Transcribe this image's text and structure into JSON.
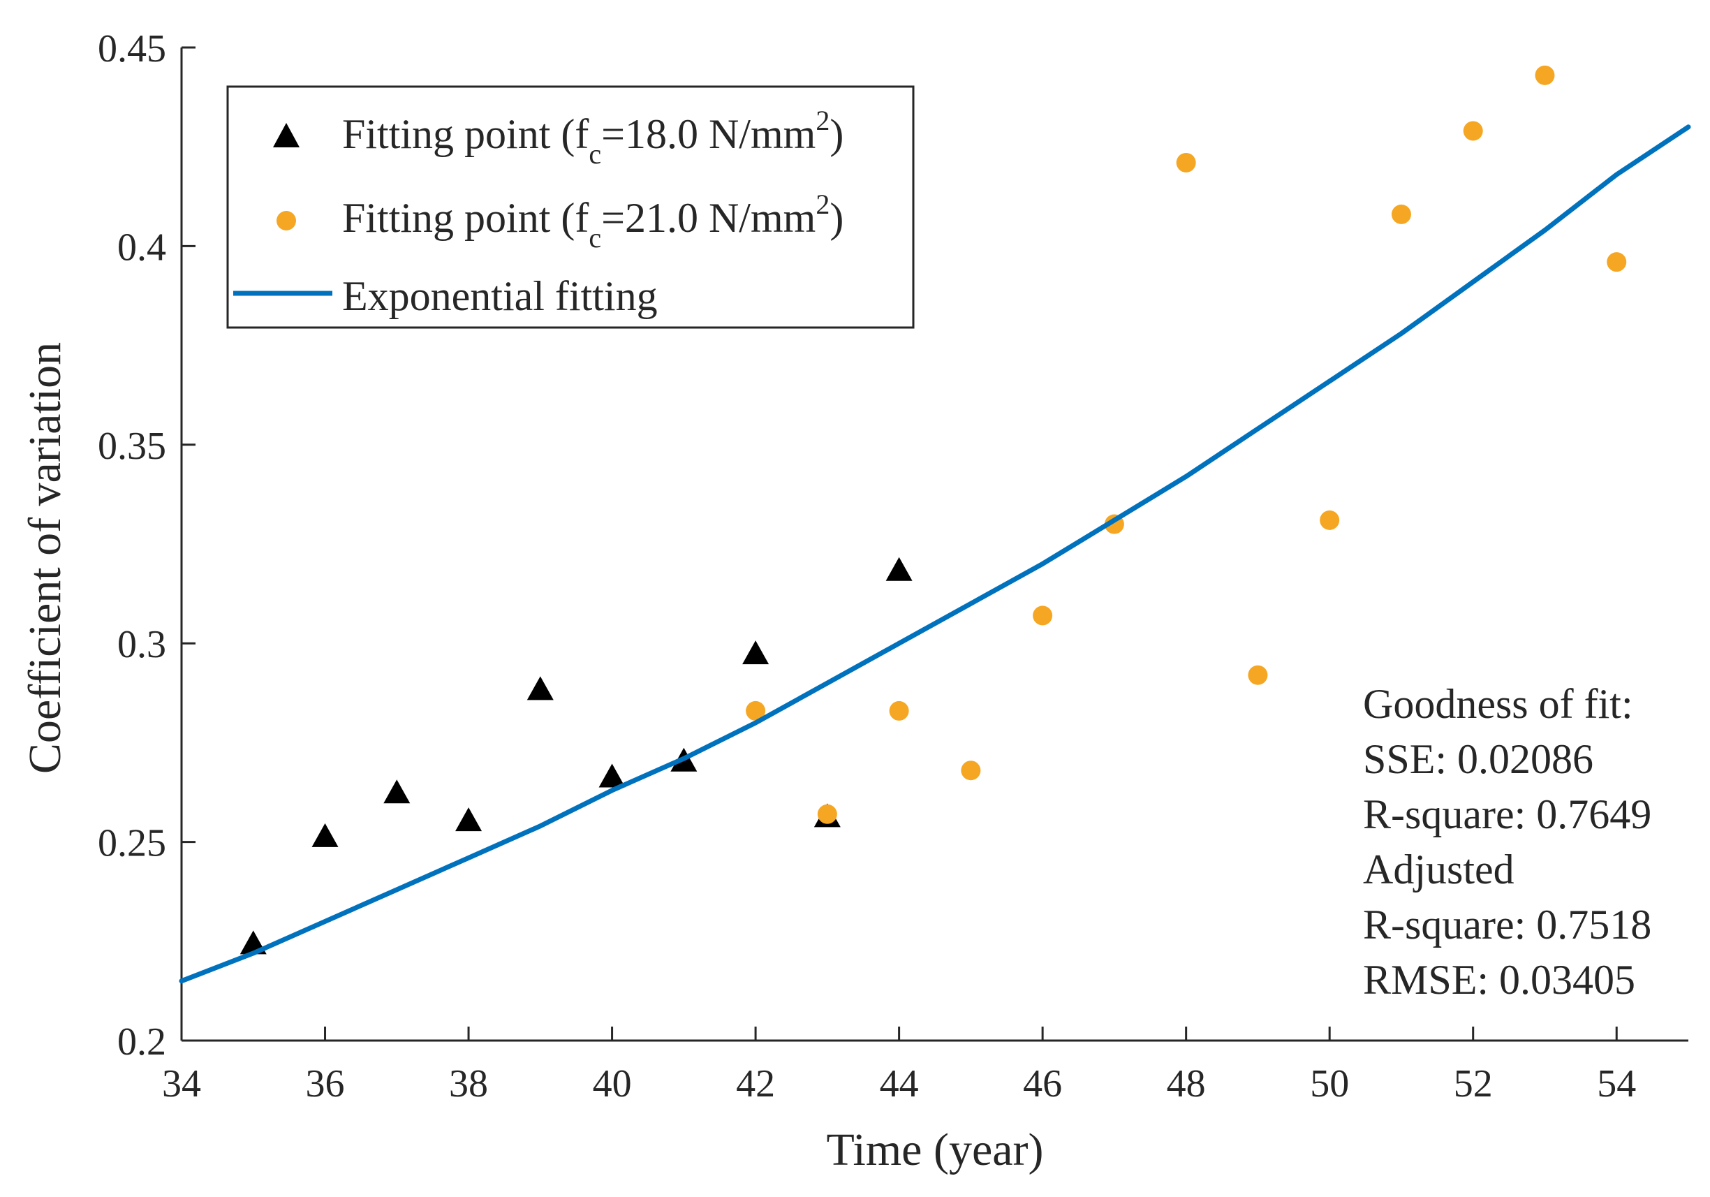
{
  "chart_data": {
    "type": "scatter",
    "xlabel": "Time (year)",
    "ylabel": "Coefficient of variation",
    "xlim": [
      34,
      55
    ],
    "ylim": [
      0.2,
      0.45
    ],
    "xticks": [
      34,
      36,
      38,
      40,
      42,
      44,
      46,
      48,
      50,
      52,
      54
    ],
    "xtick_labels": [
      "34",
      "36",
      "38",
      "40",
      "42",
      "44",
      "46",
      "48",
      "50",
      "52",
      "54"
    ],
    "yticks": [
      0.2,
      0.25,
      0.3,
      0.35,
      0.4,
      0.45
    ],
    "ytick_labels": [
      "0.2",
      "0.25",
      "0.3",
      "0.35",
      "0.4",
      "0.45"
    ],
    "grid": false,
    "legend_position": "top-left",
    "series": [
      {
        "name": "Fitting point (fc=18.0 N/mm2)",
        "legend": {
          "prefix": "Fitting point (f",
          "sub": "c",
          "mid": "=18.0 N/mm",
          "sup": "2",
          "suffix": ")"
        },
        "marker": "triangle",
        "color": "#000000",
        "x": [
          35,
          36,
          37,
          38,
          39,
          40,
          41,
          42,
          43,
          44
        ],
        "y": [
          0.224,
          0.251,
          0.262,
          0.255,
          0.288,
          0.266,
          0.27,
          0.297,
          0.256,
          0.318
        ]
      },
      {
        "name": "Fitting point (fc=21.0 N/mm2)",
        "legend": {
          "prefix": "Fitting point (f",
          "sub": "c",
          "mid": "=21.0 N/mm",
          "sup": "2",
          "suffix": ")"
        },
        "marker": "circle",
        "color": "#F5A623",
        "x": [
          42,
          43,
          44,
          45,
          46,
          47,
          48,
          49,
          50,
          51,
          52,
          53,
          54
        ],
        "y": [
          0.283,
          0.257,
          0.283,
          0.268,
          0.307,
          0.33,
          0.421,
          0.292,
          0.331,
          0.408,
          0.429,
          0.443,
          0.396
        ]
      },
      {
        "name": "Exponential fitting",
        "legend": {
          "prefix": "Exponential fitting"
        },
        "marker": "line",
        "color": "#0072BD",
        "x": [
          34,
          35,
          36,
          37,
          38,
          39,
          40,
          41,
          42,
          43,
          44,
          45,
          46,
          47,
          48,
          49,
          50,
          51,
          52,
          53,
          54,
          55
        ],
        "y": [
          0.215,
          0.222,
          0.23,
          0.238,
          0.246,
          0.254,
          0.263,
          0.271,
          0.28,
          0.29,
          0.3,
          0.31,
          0.32,
          0.331,
          0.342,
          0.354,
          0.366,
          0.378,
          0.391,
          0.404,
          0.418,
          0.43
        ]
      }
    ],
    "annotation": {
      "lines": [
        "Goodness of fit:",
        "SSE: 0.02086",
        "R-square: 0.7649",
        "Adjusted",
        "R-square: 0.7518",
        "RMSE: 0.03405"
      ],
      "sse": 0.02086,
      "r_square": 0.7649,
      "adjusted_r_square": 0.7518,
      "rmse": 0.03405
    }
  }
}
